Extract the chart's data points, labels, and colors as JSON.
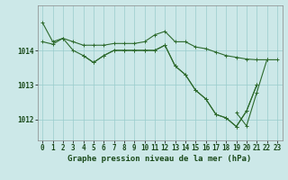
{
  "hours": [
    0,
    1,
    2,
    3,
    4,
    5,
    6,
    7,
    8,
    9,
    10,
    11,
    12,
    13,
    14,
    15,
    16,
    17,
    18,
    19,
    20,
    21,
    22,
    23
  ],
  "line1": [
    1014.8,
    1014.25,
    1014.35,
    1014.25,
    1014.15,
    1014.15,
    1014.15,
    1014.2,
    1014.2,
    1014.2,
    1014.25,
    1014.45,
    1014.55,
    1014.25,
    1014.25,
    1014.1,
    1014.05,
    1013.95,
    1013.85,
    1013.8,
    1013.75,
    1013.73,
    1013.73,
    1013.73
  ],
  "line2": [
    1014.25,
    1014.18,
    1014.35,
    1014.0,
    1013.85,
    1013.65,
    1013.85,
    1014.0,
    1014.0,
    1014.0,
    1014.0,
    1014.0,
    1014.15,
    1013.55,
    1013.3,
    1012.85,
    1012.6,
    1012.15,
    1012.05,
    1011.8,
    1012.25,
    1013.0,
    null,
    null
  ],
  "line3": [
    null,
    null,
    null,
    null,
    1013.85,
    1013.65,
    1013.85,
    1014.0,
    1014.0,
    1014.0,
    1014.0,
    1014.0,
    1014.15,
    1013.55,
    1013.3,
    1012.85,
    1012.6,
    1012.15,
    1012.05,
    1011.8,
    1012.25,
    1013.0,
    null,
    null
  ],
  "line4": [
    null,
    null,
    null,
    null,
    null,
    null,
    null,
    null,
    null,
    null,
    null,
    null,
    null,
    null,
    null,
    null,
    null,
    null,
    null,
    1012.2,
    1011.82,
    1012.78,
    1013.73,
    null
  ],
  "bg_color": "#cce8e8",
  "grid_color": "#99cccc",
  "line_color": "#2d6a2d",
  "border_color": "#888888",
  "marker": "+",
  "markersize": 3,
  "linewidth": 0.8,
  "title": "Graphe pression niveau de la mer (hPa)",
  "title_fontsize": 6.5,
  "tick_fontsize": 5.5,
  "ylim": [
    1011.4,
    1015.3
  ],
  "yticks": [
    1012,
    1013,
    1014
  ],
  "xlim": [
    -0.5,
    23.5
  ],
  "xticks": [
    0,
    1,
    2,
    3,
    4,
    5,
    6,
    7,
    8,
    9,
    10,
    11,
    12,
    13,
    14,
    15,
    16,
    17,
    18,
    19,
    20,
    21,
    22,
    23
  ]
}
